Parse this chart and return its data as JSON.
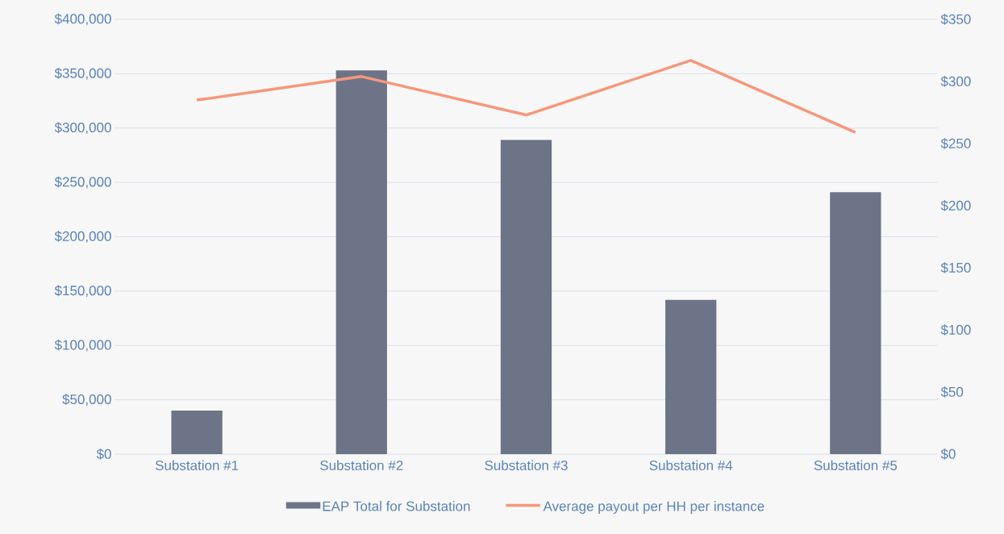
{
  "chart_data": {
    "type": "bar",
    "categories": [
      "Substation #1",
      "Substation #2",
      "Substation #3",
      "Substation #4",
      "Substation #5"
    ],
    "series": [
      {
        "name": "EAP Total for Substation",
        "color": "#6e7487",
        "values": [
          40000,
          353000,
          289000,
          142000,
          241000
        ]
      },
      {
        "name": "Average payout per HH per instance",
        "type": "line",
        "axis": "y2",
        "color": "#f7977a",
        "values": [
          285,
          304,
          273,
          317,
          259
        ]
      }
    ],
    "ylim": [
      0,
      400000
    ],
    "yticks": [
      {
        "value": 0,
        "label": "$0"
      },
      {
        "value": 50000,
        "label": "$50,000"
      },
      {
        "value": 100000,
        "label": "$100,000"
      },
      {
        "value": 150000,
        "label": "$150,000"
      },
      {
        "value": 200000,
        "label": "$200,000"
      },
      {
        "value": 250000,
        "label": "$250,000"
      },
      {
        "value": 300000,
        "label": "$300,000"
      },
      {
        "value": 350000,
        "label": "$350,000"
      },
      {
        "value": 400000,
        "label": "$400,000"
      }
    ],
    "y2lim": [
      0,
      350
    ],
    "y2ticks": [
      {
        "value": 0,
        "label": "$0"
      },
      {
        "value": 50,
        "label": "$50"
      },
      {
        "value": 100,
        "label": "$100"
      },
      {
        "value": 150,
        "label": "$150"
      },
      {
        "value": 200,
        "label": "$200"
      },
      {
        "value": 250,
        "label": "$250"
      },
      {
        "value": 300,
        "label": "$300"
      },
      {
        "value": 350,
        "label": "$350"
      }
    ],
    "grid": "y",
    "legend": "bottom",
    "marker": "none",
    "line_style": "solid"
  }
}
